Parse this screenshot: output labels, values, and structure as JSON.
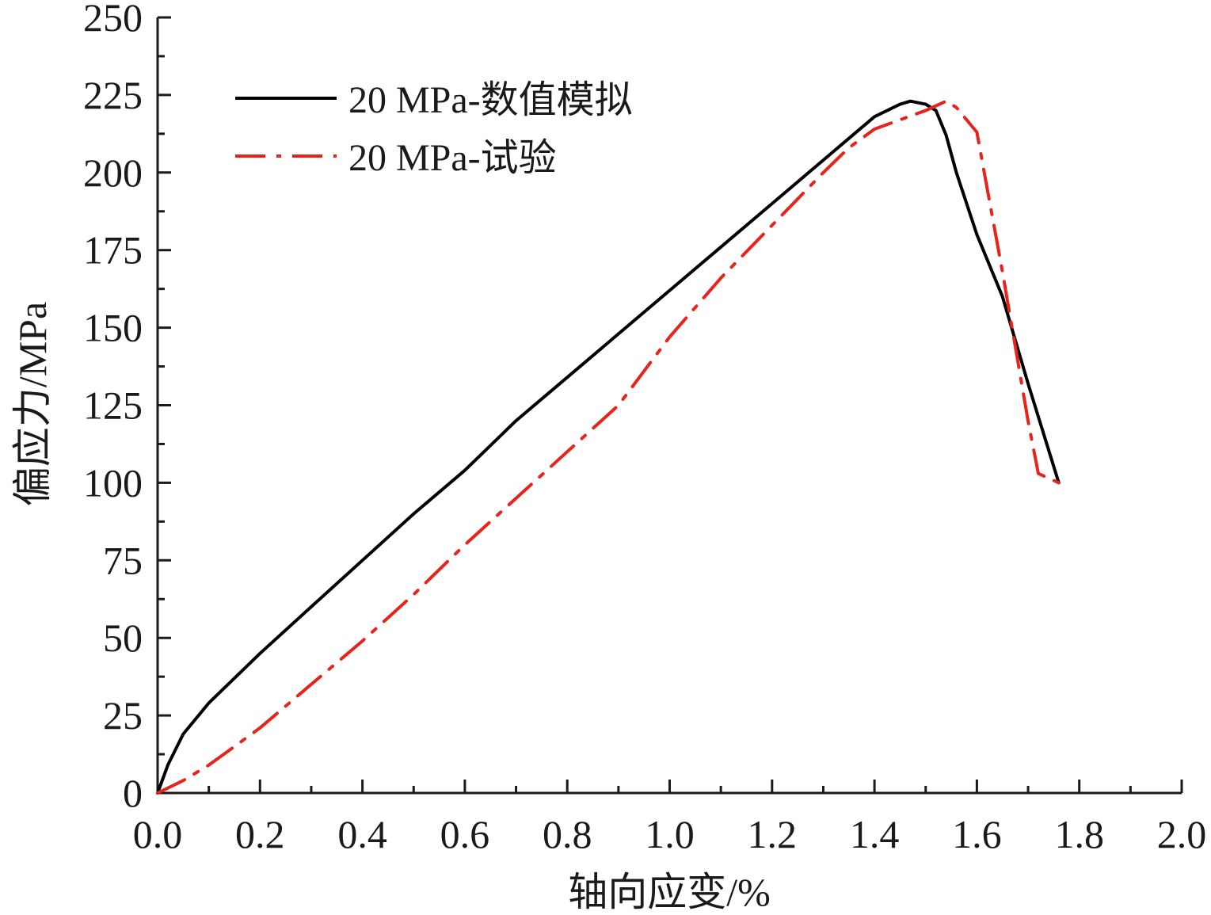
{
  "chart_data": {
    "type": "line",
    "title": "",
    "xlabel": "轴向应变/%",
    "ylabel": "偏应力/MPa",
    "xlim": [
      0.0,
      2.0
    ],
    "ylim": [
      0,
      250
    ],
    "x_ticks": [
      "0.0",
      "0.2",
      "0.4",
      "0.6",
      "0.8",
      "1.0",
      "1.2",
      "1.4",
      "1.6",
      "1.8",
      "2.0"
    ],
    "y_ticks": [
      "0",
      "25",
      "50",
      "75",
      "100",
      "125",
      "150",
      "175",
      "200",
      "225",
      "250"
    ],
    "grid": false,
    "legend_position": "top-left",
    "series": [
      {
        "name": "20 MPa-数值模拟",
        "color": "#000000",
        "dash": "solid",
        "x": [
          0.0,
          0.02,
          0.05,
          0.1,
          0.15,
          0.2,
          0.3,
          0.4,
          0.5,
          0.6,
          0.7,
          0.8,
          0.9,
          1.0,
          1.1,
          1.2,
          1.3,
          1.35,
          1.4,
          1.45,
          1.47,
          1.5,
          1.52,
          1.54,
          1.56,
          1.6,
          1.65,
          1.7,
          1.76
        ],
        "y": [
          0,
          9,
          19,
          29,
          37,
          45,
          60,
          75,
          90,
          104,
          120,
          134,
          148,
          162,
          176,
          190,
          204,
          211,
          218,
          222,
          223,
          222,
          220,
          212,
          200,
          180,
          160,
          132,
          100
        ]
      },
      {
        "name": "20 MPa-试验",
        "color": "#e8231c",
        "dash": "dashdot",
        "x": [
          0.0,
          0.05,
          0.1,
          0.15,
          0.2,
          0.3,
          0.4,
          0.5,
          0.6,
          0.7,
          0.8,
          0.9,
          1.0,
          1.1,
          1.2,
          1.3,
          1.35,
          1.4,
          1.45,
          1.5,
          1.54,
          1.56,
          1.6,
          1.65,
          1.7,
          1.72,
          1.76
        ],
        "y": [
          0,
          4,
          9,
          15,
          21,
          35,
          49,
          64,
          80,
          95,
          110,
          125,
          147,
          166,
          183,
          200,
          208,
          214,
          217,
          220,
          223,
          221,
          213,
          168,
          120,
          103,
          100
        ]
      }
    ]
  }
}
